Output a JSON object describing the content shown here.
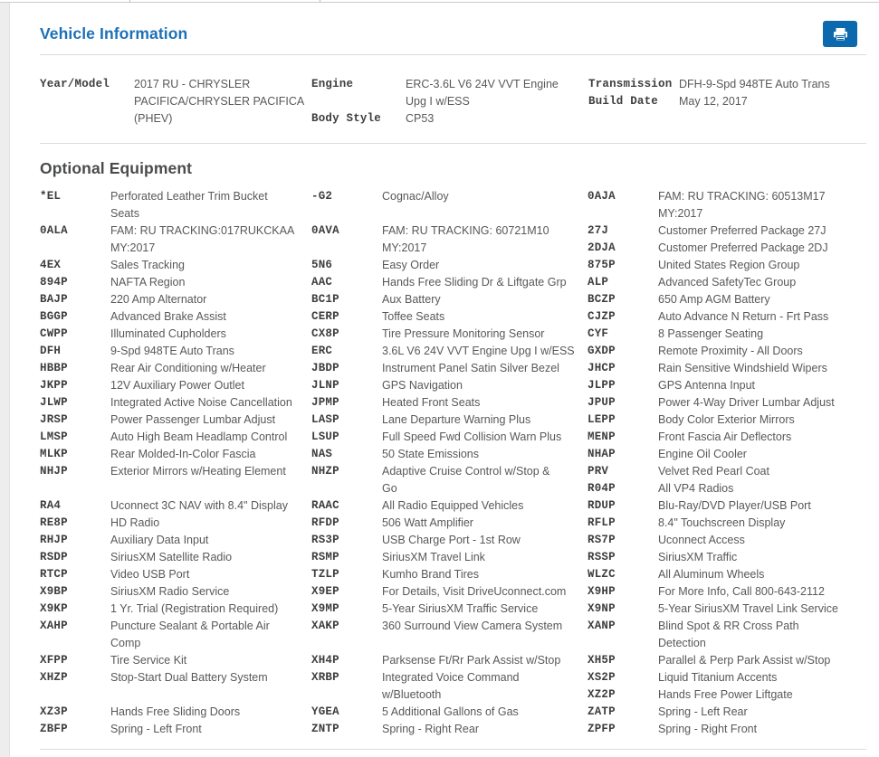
{
  "header": {
    "title": "Vehicle Information",
    "print_icon": "printer-icon"
  },
  "colors": {
    "accent_blue": "#1c70b8",
    "print_button_blue": "#0d69ae",
    "heading_gray": "#4a4b4d",
    "code_text": "#3e3e40",
    "desc_text": "#57585b"
  },
  "vehicle_info": {
    "groups": [
      [
        {
          "label": "Year/Model",
          "value": "2017 RU - CHRYSLER\nPACIFICA/CHRYSLER PACIFICA\n(PHEV)"
        }
      ],
      [
        {
          "label": "Engine",
          "value": "ERC-3.6L V6 24V VVT Engine\nUpg I w/ESS"
        },
        {
          "label": "Body Style",
          "value": "CP53"
        }
      ],
      [
        {
          "label": "Transmission",
          "value": "DFH-9-Spd 948TE Auto Trans"
        },
        {
          "label": "Build Date",
          "value": "May 12, 2017"
        }
      ]
    ]
  },
  "optional_equipment": {
    "heading": "Optional Equipment",
    "columns": [
      [
        {
          "code": "*EL",
          "desc": "Perforated Leather Trim Bucket\nSeats"
        },
        {
          "code": "0ALA",
          "desc": "FAM: RU TRACKING:017RUKCKAA\nMY:2017"
        },
        {
          "code": "4EX",
          "desc": "Sales Tracking"
        },
        {
          "code": "894P",
          "desc": "NAFTA Region"
        },
        {
          "code": "BAJP",
          "desc": "220 Amp Alternator"
        },
        {
          "code": "BGGP",
          "desc": "Advanced Brake Assist"
        },
        {
          "code": "CWPP",
          "desc": "Illuminated Cupholders"
        },
        {
          "code": "DFH",
          "desc": "9-Spd 948TE Auto Trans"
        },
        {
          "code": "HBBP",
          "desc": "Rear Air Conditioning w/Heater"
        },
        {
          "code": "JKPP",
          "desc": "12V Auxiliary Power Outlet"
        },
        {
          "code": "JLWP",
          "desc": "Integrated Active Noise Cancellation"
        },
        {
          "code": "JRSP",
          "desc": "Power Passenger Lumbar Adjust"
        },
        {
          "code": "LMSP",
          "desc": "Auto High Beam Headlamp Control"
        },
        {
          "code": "MLKP",
          "desc": "Rear Molded-In-Color Fascia"
        },
        {
          "code": "NHJP",
          "desc": "Exterior Mirrors w/Heating Element"
        },
        {
          "spacer": true
        },
        {
          "code": "RA4",
          "desc": "Uconnect 3C NAV with 8.4\" Display"
        },
        {
          "code": "RE8P",
          "desc": "HD Radio"
        },
        {
          "code": "RHJP",
          "desc": "Auxiliary Data Input"
        },
        {
          "code": "RSDP",
          "desc": "SiriusXM Satellite Radio"
        },
        {
          "code": "RTCP",
          "desc": "Video USB Port"
        },
        {
          "code": "X9BP",
          "desc": "SiriusXM Radio Service"
        },
        {
          "code": "X9KP",
          "desc": "1 Yr. Trial (Registration Required)"
        },
        {
          "code": "XAHP",
          "desc": "Puncture Sealant & Portable Air\nComp"
        },
        {
          "code": "XFPP",
          "desc": "Tire Service Kit"
        },
        {
          "code": "XHZP",
          "desc": "Stop-Start Dual Battery System"
        },
        {
          "spacer": true
        },
        {
          "code": "XZ3P",
          "desc": "Hands Free Sliding Doors"
        },
        {
          "code": "ZBFP",
          "desc": "Spring - Left Front"
        }
      ],
      [
        {
          "code": "-G2",
          "desc": "Cognac/Alloy"
        },
        {
          "spacer": true
        },
        {
          "code": "0AVA",
          "desc": "FAM: RU TRACKING: 60721M10\nMY:2017"
        },
        {
          "code": "5N6",
          "desc": "Easy Order"
        },
        {
          "code": "AAC",
          "desc": "Hands Free Sliding Dr & Liftgate Grp"
        },
        {
          "code": "BC1P",
          "desc": "Aux Battery"
        },
        {
          "code": "CERP",
          "desc": "Toffee Seats"
        },
        {
          "code": "CX8P",
          "desc": "Tire Pressure Monitoring Sensor"
        },
        {
          "code": "ERC",
          "desc": "3.6L V6 24V VVT Engine Upg I w/ESS"
        },
        {
          "code": "JBDP",
          "desc": "Instrument Panel Satin Silver Bezel"
        },
        {
          "code": "JLNP",
          "desc": "GPS Navigation"
        },
        {
          "code": "JPMP",
          "desc": "Heated Front Seats"
        },
        {
          "code": "LASP",
          "desc": "Lane Departure Warning Plus"
        },
        {
          "code": "LSUP",
          "desc": "Full Speed Fwd Collision Warn Plus"
        },
        {
          "code": "NAS",
          "desc": "50 State Emissions"
        },
        {
          "code": "NHZP",
          "desc": "Adaptive Cruise Control w/Stop &\nGo"
        },
        {
          "code": "RAAC",
          "desc": "All Radio Equipped Vehicles"
        },
        {
          "code": "RFDP",
          "desc": "506 Watt Amplifier"
        },
        {
          "code": "RS3P",
          "desc": "USB Charge Port - 1st Row"
        },
        {
          "code": "RSMP",
          "desc": "SiriusXM Travel Link"
        },
        {
          "code": "TZLP",
          "desc": "Kumho Brand Tires"
        },
        {
          "code": "X9EP",
          "desc": "For Details, Visit DriveUconnect.com"
        },
        {
          "code": "X9MP",
          "desc": "5-Year SiriusXM Traffic Service"
        },
        {
          "code": "XAKP",
          "desc": "360 Surround View Camera System"
        },
        {
          "spacer": true
        },
        {
          "code": "XH4P",
          "desc": "Parksense Ft/Rr Park Assist w/Stop"
        },
        {
          "code": "XRBP",
          "desc": "Integrated Voice Command\nw/Bluetooth"
        },
        {
          "code": "YGEA",
          "desc": "5 Additional Gallons of Gas"
        },
        {
          "code": "ZNTP",
          "desc": "Spring - Right Rear"
        }
      ],
      [
        {
          "code": "0AJA",
          "desc": "FAM: RU TRACKING: 60513M17\nMY:2017"
        },
        {
          "code": "27J",
          "desc": "Customer Preferred Package 27J"
        },
        {
          "code": "2DJA",
          "desc": "Customer Preferred Package 2DJ"
        },
        {
          "code": "875P",
          "desc": "United States Region Group"
        },
        {
          "code": "ALP",
          "desc": "Advanced SafetyTec Group"
        },
        {
          "code": "BCZP",
          "desc": "650 Amp AGM Battery"
        },
        {
          "code": "CJZP",
          "desc": "Auto Advance N Return - Frt Pass"
        },
        {
          "code": "CYF",
          "desc": "8 Passenger Seating"
        },
        {
          "code": "GXDP",
          "desc": "Remote Proximity - All Doors"
        },
        {
          "code": "JHCP",
          "desc": "Rain Sensitive Windshield Wipers"
        },
        {
          "code": "JLPP",
          "desc": "GPS Antenna Input"
        },
        {
          "code": "JPUP",
          "desc": "Power 4-Way Driver Lumbar Adjust"
        },
        {
          "code": "LEPP",
          "desc": "Body Color Exterior Mirrors"
        },
        {
          "code": "MENP",
          "desc": "Front Fascia Air Deflectors"
        },
        {
          "code": "NHAP",
          "desc": "Engine Oil Cooler"
        },
        {
          "code": "PRV",
          "desc": "Velvet Red Pearl Coat"
        },
        {
          "code": "R04P",
          "desc": "All VP4 Radios"
        },
        {
          "code": "RDUP",
          "desc": "Blu-Ray/DVD Player/USB Port"
        },
        {
          "code": "RFLP",
          "desc": "8.4\" Touchscreen Display"
        },
        {
          "code": "RS7P",
          "desc": "Uconnect Access"
        },
        {
          "code": "RSSP",
          "desc": "SiriusXM Traffic"
        },
        {
          "code": "WLZC",
          "desc": "All Aluminum Wheels"
        },
        {
          "code": "X9HP",
          "desc": "For More Info, Call 800-643-2112"
        },
        {
          "code": "X9NP",
          "desc": "5-Year SiriusXM Travel Link Service"
        },
        {
          "code": "XANP",
          "desc": "Blind Spot & RR Cross Path\nDetection"
        },
        {
          "code": "XH5P",
          "desc": "Parallel & Perp Park Assist w/Stop"
        },
        {
          "code": "XS2P",
          "desc": "Liquid Titanium Accents"
        },
        {
          "code": "XZ2P",
          "desc": "Hands Free Power Liftgate"
        },
        {
          "code": "ZATP",
          "desc": "Spring - Left Rear"
        },
        {
          "code": "ZPFP",
          "desc": "Spring - Right Front"
        }
      ]
    ]
  }
}
